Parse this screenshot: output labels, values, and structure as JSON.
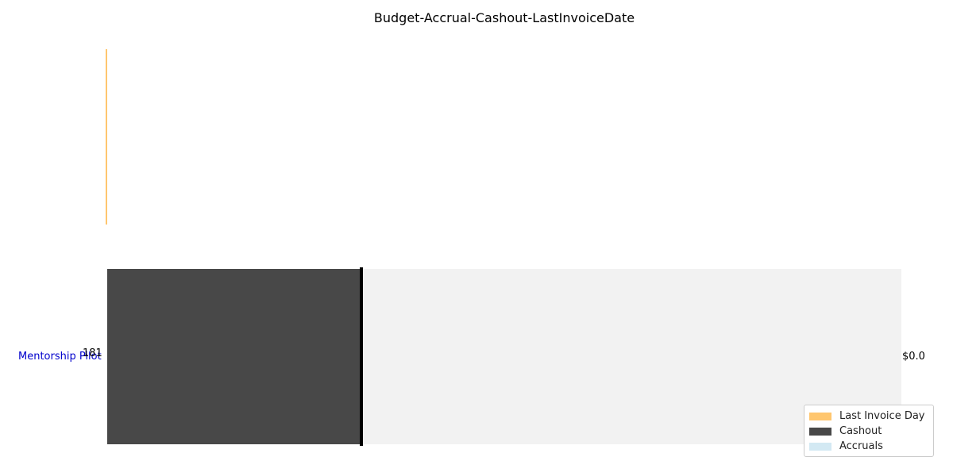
{
  "chart_data": {
    "type": "bar",
    "title": "Budget-Accrual-Cashout-LastInvoiceDate",
    "categories": [
      "Mentorship Pilot"
    ],
    "category_label": "181",
    "budget_label": "$0.0",
    "series": [
      {
        "name": "Last Invoice Day",
        "color": "#ffc66e",
        "values": [
          0
        ]
      },
      {
        "name": "Cashout",
        "color": "#484848",
        "values": [
          0.32
        ]
      },
      {
        "name": "Accruals",
        "color": "#d3e9f3",
        "values": [
          0
        ]
      }
    ],
    "budget_fraction": 1.0,
    "last_invoice_fraction": 0.32,
    "background_bar_color": "#f2f2f2",
    "category_label_color": "#0000cc",
    "legend_position": "lower-right",
    "grid": false
  }
}
